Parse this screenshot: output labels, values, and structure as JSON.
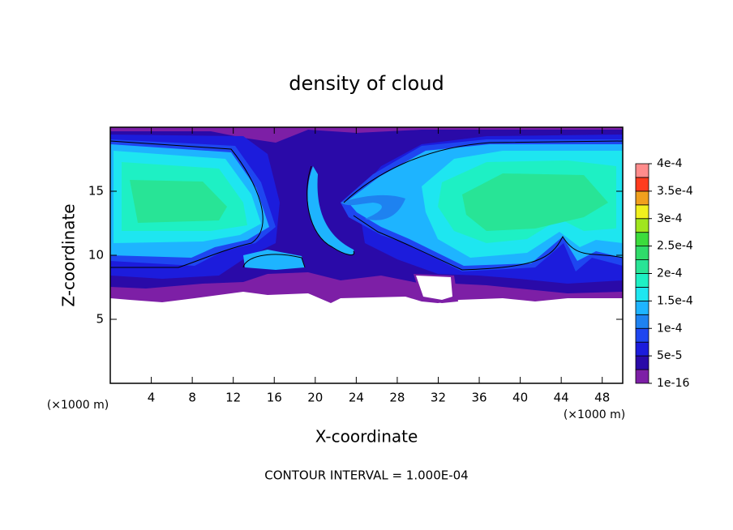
{
  "chart_data": {
    "type": "contour",
    "title": "density of cloud",
    "xlabel": "X-coordinate",
    "ylabel": "Z-coordinate",
    "x_unit": "(×1000 m)",
    "y_unit": "(×1000 m)",
    "note": "CONTOUR INTERVAL = 1.000E-04",
    "xlim": [
      0,
      50
    ],
    "xticks": [
      4,
      8,
      12,
      16,
      20,
      24,
      28,
      32,
      36,
      40,
      44,
      48
    ],
    "ylim": [
      0,
      20
    ],
    "yticks": [
      5,
      10,
      15
    ],
    "clim": [
      1e-16,
      0.0004
    ],
    "cticks": [
      {
        "value": 1e-16,
        "label": "1e-16"
      },
      {
        "value": 5e-05,
        "label": "5e-5"
      },
      {
        "value": 0.0001,
        "label": "1e-4"
      },
      {
        "value": 0.00015,
        "label": "1.5e-4"
      },
      {
        "value": 0.0002,
        "label": "2e-4"
      },
      {
        "value": 0.00025,
        "label": "2.5e-4"
      },
      {
        "value": 0.0003,
        "label": "3e-4"
      },
      {
        "value": 0.00035,
        "label": "3.5e-4"
      },
      {
        "value": 0.0004,
        "label": "4e-4"
      }
    ],
    "colors": [
      "#7d1fa6",
      "#2a0aa8",
      "#1c1cdc",
      "#1e46f0",
      "#1e82f0",
      "#1eb4ff",
      "#1ee6f0",
      "#1ef0c4",
      "#28e496",
      "#30dc6a",
      "#3cdc3c",
      "#a0e61e",
      "#f0f01e",
      "#f0a01e",
      "#ff3c1e",
      "#ff8c8c"
    ]
  }
}
